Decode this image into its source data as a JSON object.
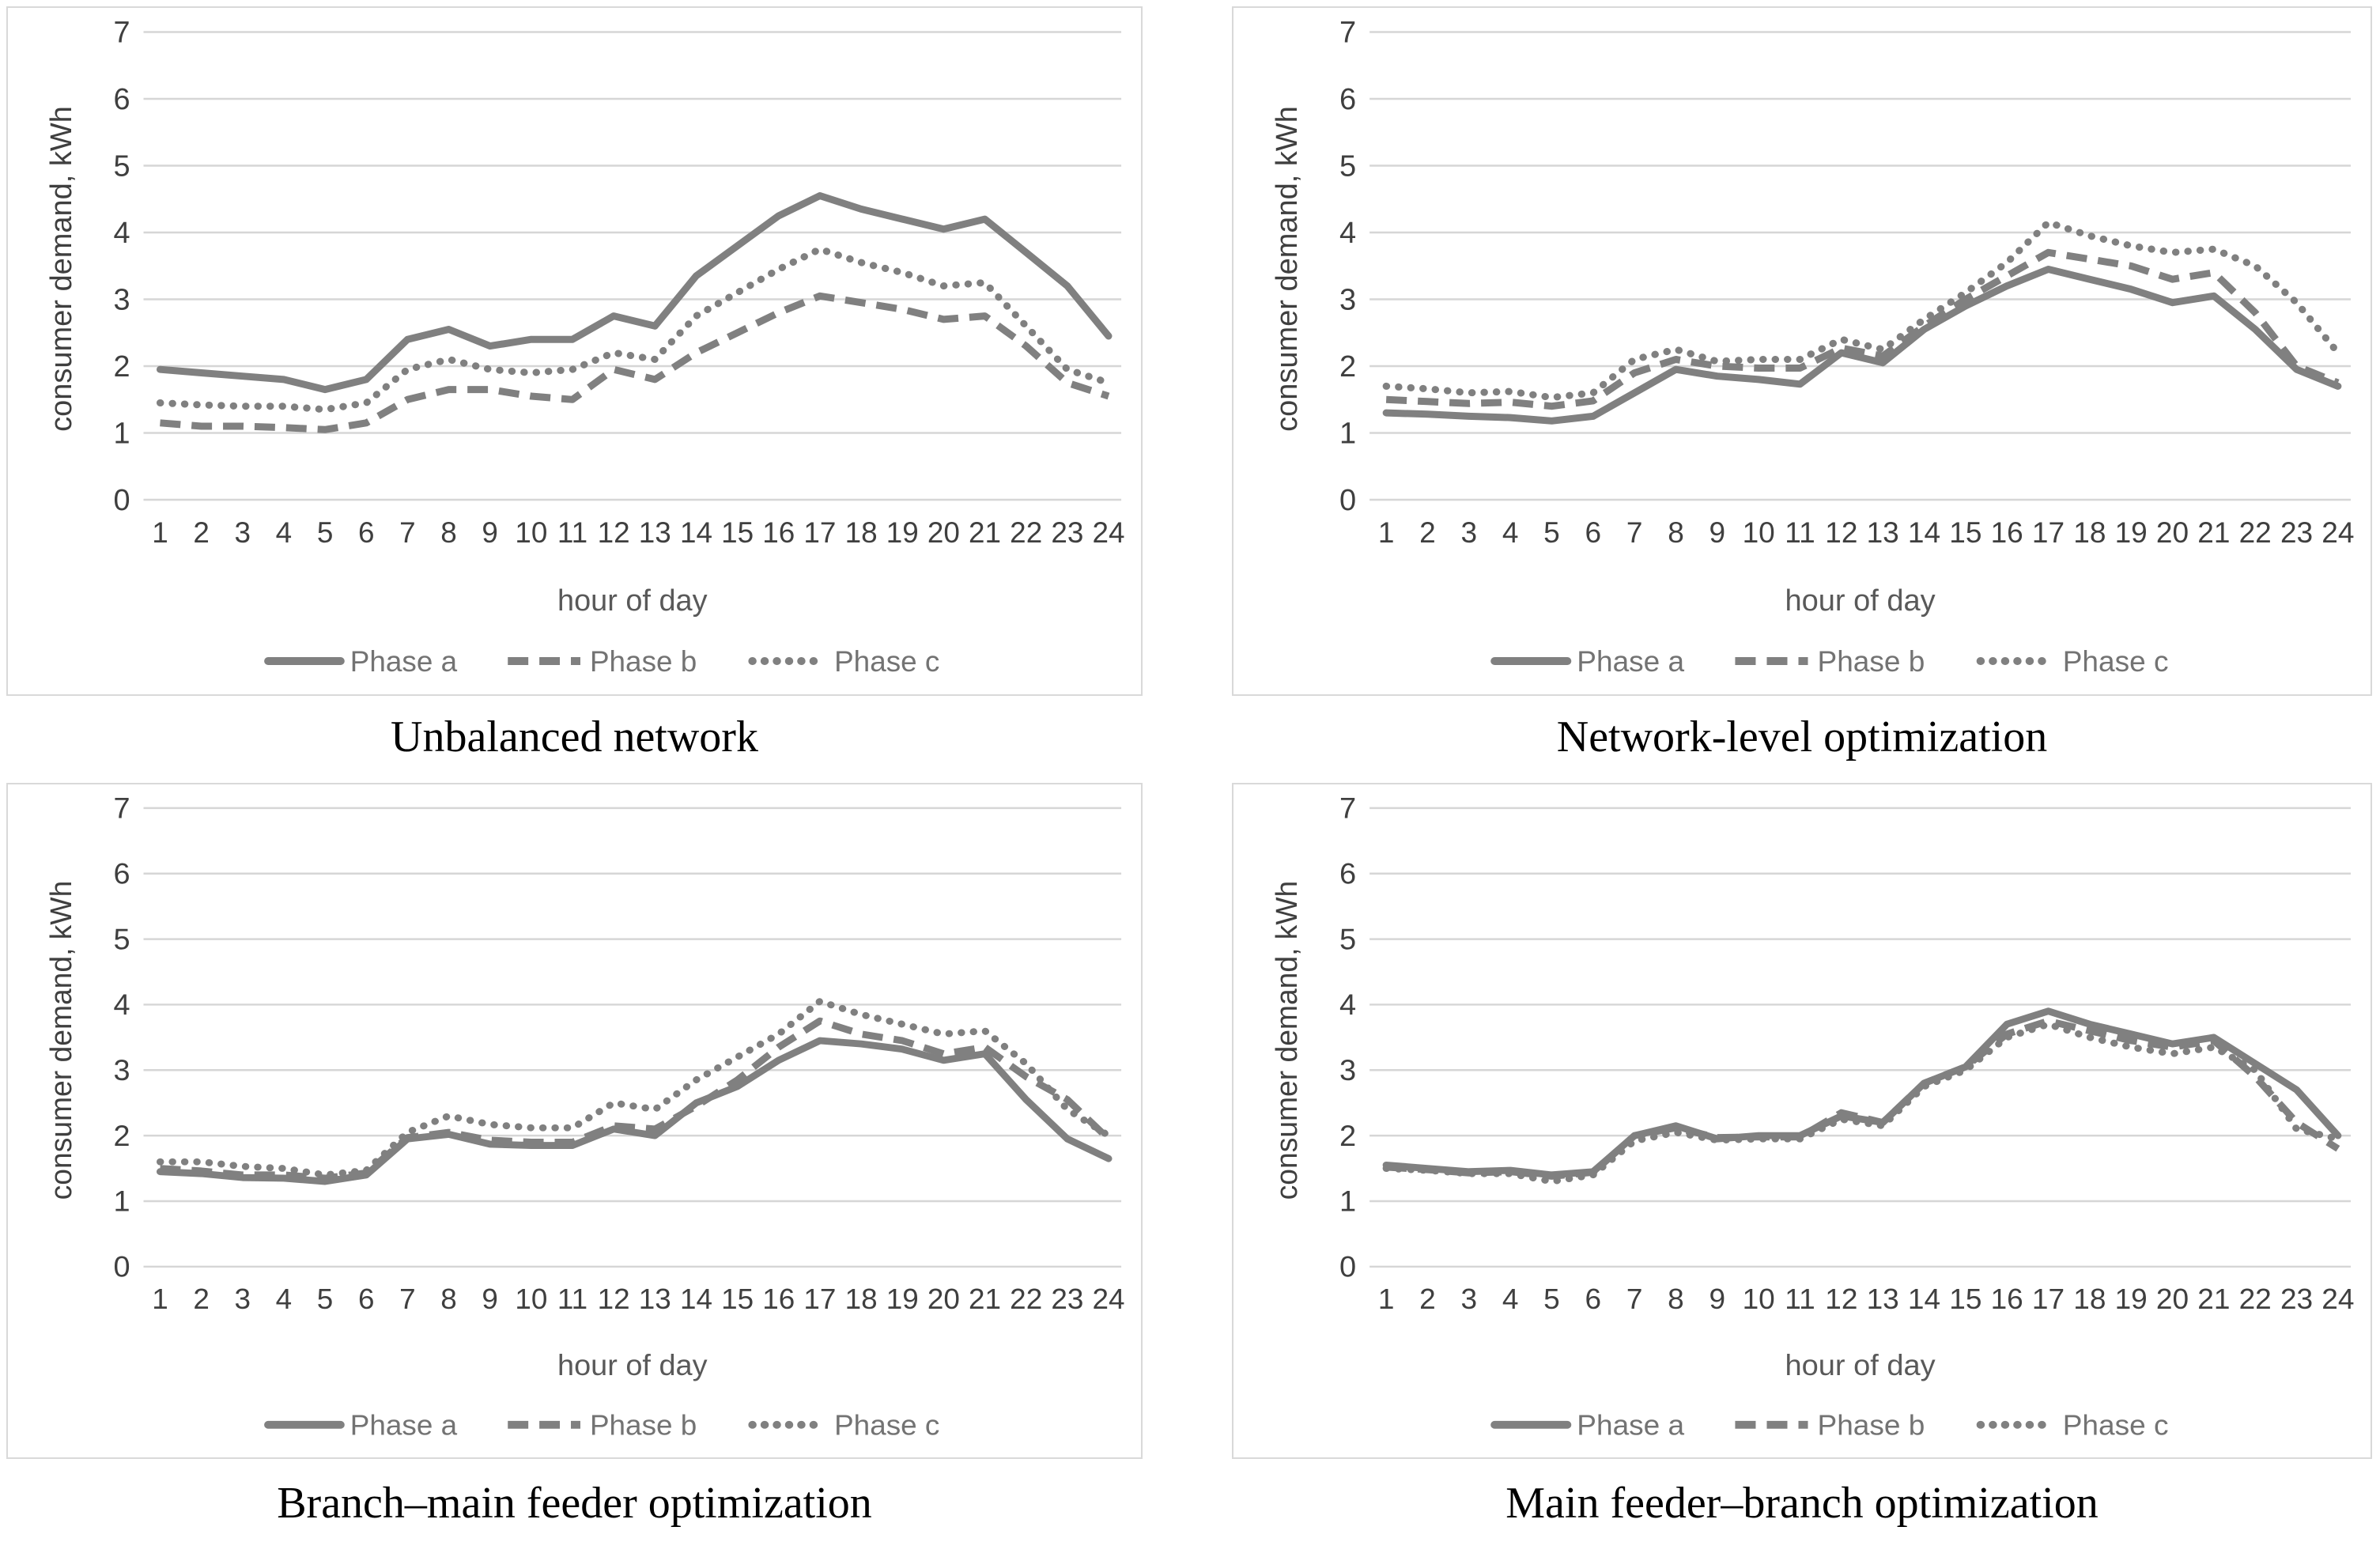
{
  "figure": {
    "description": "Three-phase consumer demand profiles under four balancing schemes",
    "panel_titles": [
      "Unbalanced network",
      "Network-level optimization",
      "Branch–main feeder optimization",
      "Main feeder–branch optimization"
    ]
  },
  "styles": {
    "series_color": "#808080",
    "grid_color": "#d6d6d6",
    "tick_color": "#3f3f3f",
    "axis_title_color": "#595959",
    "legend_text_color": "#737373",
    "panel_border_color": "#d9d9d9",
    "caption_color": "#000000"
  },
  "legend": {
    "position": "bottom",
    "items": [
      {
        "label": "Phase a",
        "style": "solid",
        "swatch": "solid-line-icon"
      },
      {
        "label": "Phase b",
        "style": "dashed",
        "swatch": "dashed-line-icon"
      },
      {
        "label": "Phase c",
        "style": "dotted",
        "swatch": "dotted-line-icon"
      }
    ]
  },
  "chart_data": [
    {
      "type": "line",
      "title": "Unbalanced network",
      "xlabel": "hour of day",
      "ylabel": "consumer demand, kWh",
      "ylim": [
        0,
        7
      ],
      "yticks": [
        0,
        1,
        2,
        3,
        4,
        5,
        6,
        7
      ],
      "grid": true,
      "legend_position": "bottom",
      "x": [
        1,
        2,
        3,
        4,
        5,
        6,
        7,
        8,
        9,
        10,
        11,
        12,
        13,
        14,
        15,
        16,
        17,
        18,
        19,
        20,
        21,
        22,
        23,
        24
      ],
      "series": [
        {
          "name": "Phase a",
          "style": "solid",
          "values": [
            1.95,
            1.9,
            1.85,
            1.8,
            1.65,
            1.8,
            2.4,
            2.55,
            2.3,
            2.4,
            2.4,
            2.75,
            2.6,
            3.35,
            3.8,
            4.25,
            4.55,
            4.35,
            4.2,
            4.05,
            4.2,
            3.7,
            3.2,
            2.45
          ]
        },
        {
          "name": "Phase b",
          "style": "dashed",
          "values": [
            1.15,
            1.1,
            1.1,
            1.08,
            1.05,
            1.15,
            1.5,
            1.65,
            1.65,
            1.55,
            1.5,
            1.95,
            1.8,
            2.2,
            2.5,
            2.8,
            3.05,
            2.95,
            2.85,
            2.7,
            2.75,
            2.3,
            1.75,
            1.55
          ]
        },
        {
          "name": "Phase c",
          "style": "dotted",
          "values": [
            1.45,
            1.42,
            1.4,
            1.4,
            1.35,
            1.45,
            1.95,
            2.1,
            1.95,
            1.9,
            1.95,
            2.2,
            2.1,
            2.75,
            3.1,
            3.45,
            3.75,
            3.55,
            3.4,
            3.2,
            3.25,
            2.6,
            1.95,
            1.75
          ]
        }
      ]
    },
    {
      "type": "line",
      "title": "Network-level optimization",
      "xlabel": "hour of day",
      "ylabel": "consumer demand, kWh",
      "ylim": [
        0,
        7
      ],
      "yticks": [
        0,
        1,
        2,
        3,
        4,
        5,
        6,
        7
      ],
      "grid": true,
      "legend_position": "bottom",
      "x": [
        1,
        2,
        3,
        4,
        5,
        6,
        7,
        8,
        9,
        10,
        11,
        12,
        13,
        14,
        15,
        16,
        17,
        18,
        19,
        20,
        21,
        22,
        23,
        24
      ],
      "series": [
        {
          "name": "Phase a",
          "style": "solid",
          "values": [
            1.3,
            1.28,
            1.25,
            1.23,
            1.18,
            1.25,
            1.6,
            1.95,
            1.85,
            1.8,
            1.73,
            2.2,
            2.05,
            2.55,
            2.9,
            3.2,
            3.45,
            3.3,
            3.15,
            2.95,
            3.05,
            2.55,
            1.95,
            1.7
          ]
        },
        {
          "name": "Phase b",
          "style": "dashed",
          "values": [
            1.5,
            1.47,
            1.44,
            1.46,
            1.4,
            1.48,
            1.9,
            2.1,
            2.0,
            1.97,
            1.97,
            2.27,
            2.15,
            2.6,
            3.0,
            3.35,
            3.7,
            3.6,
            3.5,
            3.3,
            3.4,
            2.8,
            2.0,
            1.75
          ]
        },
        {
          "name": "Phase c",
          "style": "dotted",
          "values": [
            1.7,
            1.66,
            1.6,
            1.62,
            1.53,
            1.6,
            2.1,
            2.25,
            2.07,
            2.1,
            2.1,
            2.4,
            2.25,
            2.7,
            3.1,
            3.55,
            4.15,
            3.95,
            3.8,
            3.7,
            3.75,
            3.5,
            2.95,
            2.2
          ]
        }
      ]
    },
    {
      "type": "line",
      "title": "Branch–main feeder optimization",
      "xlabel": "hour of day",
      "ylabel": "consumer demand, kWh",
      "ylim": [
        0,
        7
      ],
      "yticks": [
        0,
        1,
        2,
        3,
        4,
        5,
        6,
        7
      ],
      "grid": true,
      "legend_position": "bottom",
      "x": [
        1,
        2,
        3,
        4,
        5,
        6,
        7,
        8,
        9,
        10,
        11,
        12,
        13,
        14,
        15,
        16,
        17,
        18,
        19,
        20,
        21,
        22,
        23,
        24
      ],
      "series": [
        {
          "name": "Phase a",
          "style": "solid",
          "values": [
            1.45,
            1.42,
            1.36,
            1.35,
            1.3,
            1.4,
            1.95,
            2.02,
            1.87,
            1.85,
            1.85,
            2.1,
            2.0,
            2.5,
            2.75,
            3.15,
            3.45,
            3.4,
            3.32,
            3.15,
            3.25,
            2.55,
            1.95,
            1.65
          ]
        },
        {
          "name": "Phase b",
          "style": "dashed",
          "values": [
            1.5,
            1.46,
            1.4,
            1.4,
            1.35,
            1.43,
            1.97,
            2.05,
            1.93,
            1.9,
            1.9,
            2.15,
            2.1,
            2.45,
            2.85,
            3.35,
            3.75,
            3.55,
            3.45,
            3.25,
            3.35,
            2.9,
            2.55,
            1.95
          ]
        },
        {
          "name": "Phase c",
          "style": "dotted",
          "values": [
            1.6,
            1.6,
            1.53,
            1.5,
            1.4,
            1.47,
            2.05,
            2.3,
            2.17,
            2.12,
            2.12,
            2.5,
            2.4,
            2.85,
            3.2,
            3.55,
            4.05,
            3.85,
            3.7,
            3.55,
            3.6,
            3.1,
            2.4,
            2.0
          ]
        }
      ]
    },
    {
      "type": "line",
      "title": "Main feeder–branch optimization",
      "xlabel": "hour of day",
      "ylabel": "consumer demand, kWh",
      "ylim": [
        0,
        7
      ],
      "yticks": [
        0,
        1,
        2,
        3,
        4,
        5,
        6,
        7
      ],
      "grid": true,
      "legend_position": "bottom",
      "x": [
        1,
        2,
        3,
        4,
        5,
        6,
        7,
        8,
        9,
        10,
        11,
        12,
        13,
        14,
        15,
        16,
        17,
        18,
        19,
        20,
        21,
        22,
        23,
        24
      ],
      "series": [
        {
          "name": "Phase a",
          "style": "solid",
          "values": [
            1.55,
            1.5,
            1.45,
            1.47,
            1.4,
            1.45,
            2.0,
            2.15,
            1.95,
            2.0,
            2.0,
            2.3,
            2.2,
            2.8,
            3.05,
            3.7,
            3.9,
            3.7,
            3.55,
            3.4,
            3.5,
            3.1,
            2.7,
            2.0
          ]
        },
        {
          "name": "Phase b",
          "style": "dashed",
          "values": [
            1.52,
            1.48,
            1.43,
            1.45,
            1.38,
            1.44,
            2.0,
            2.12,
            1.97,
            1.98,
            1.98,
            2.35,
            2.2,
            2.8,
            3.05,
            3.55,
            3.75,
            3.6,
            3.45,
            3.35,
            3.45,
            2.9,
            2.2,
            1.8
          ]
        },
        {
          "name": "Phase c",
          "style": "dotted",
          "values": [
            1.5,
            1.47,
            1.42,
            1.42,
            1.3,
            1.4,
            1.92,
            2.05,
            1.93,
            1.95,
            1.95,
            2.25,
            2.15,
            2.75,
            3.0,
            3.5,
            3.7,
            3.5,
            3.35,
            3.25,
            3.35,
            3.0,
            2.1,
            1.95
          ]
        }
      ]
    }
  ]
}
